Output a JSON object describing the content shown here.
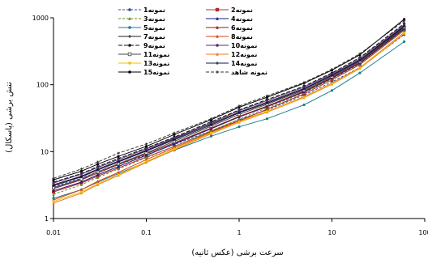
{
  "chart_data": {
    "type": "line",
    "title": "",
    "xlabel": "سرعت برشی (عکس ثانیه)",
    "ylabel": "تنش برشی (پاسکال)",
    "xscale": "log",
    "yscale": "log",
    "xlim": [
      0.01,
      100
    ],
    "ylim": [
      1,
      1000
    ],
    "xticks": [
      0.01,
      0.1,
      1,
      10,
      100
    ],
    "xtick_labels": [
      "0.01",
      "0.1",
      "1",
      "10",
      "100"
    ],
    "yticks": [
      1,
      10,
      100,
      1000
    ],
    "ytick_labels": [
      "1",
      "10",
      "100",
      "1000"
    ],
    "grid": false,
    "legend_position": "top",
    "x": [
      0.01,
      0.02,
      0.03,
      0.05,
      0.1,
      0.2,
      0.5,
      1,
      2,
      5,
      10,
      20,
      60
    ],
    "series": [
      {
        "name": "نمونه1",
        "color": "#2e4fa0",
        "marker": "circle",
        "dash": "3,2",
        "values": [
          3.0,
          4.0,
          5.0,
          6.4,
          9.0,
          12.8,
          20.5,
          30.0,
          42.0,
          70.0,
          110.0,
          180.0,
          560.0
        ]
      },
      {
        "name": "نمونه2",
        "color": "#b03030",
        "marker": "square",
        "dash": "",
        "values": [
          2.5,
          3.4,
          4.3,
          5.7,
          8.3,
          12.0,
          20.0,
          29.0,
          43.0,
          73.0,
          118.0,
          200.0,
          650.0
        ]
      },
      {
        "name": "نمونه3",
        "color": "#6b8e23",
        "marker": "triangle",
        "dash": "3,2",
        "values": [
          2.3,
          3.2,
          4.1,
          5.5,
          8.1,
          11.9,
          20.5,
          30.5,
          45.0,
          76.0,
          122.0,
          205.0,
          660.0
        ]
      },
      {
        "name": "نمونه4",
        "color": "#1a1a80",
        "marker": "triangle",
        "dash": "",
        "values": [
          2.6,
          3.5,
          4.5,
          6.0,
          8.8,
          13.0,
          22.0,
          33.0,
          47.0,
          78.0,
          125.0,
          210.0,
          680.0
        ]
      },
      {
        "name": "نمونه5",
        "color": "#1b7c8c",
        "marker": "circle",
        "dash": "",
        "values": [
          2.0,
          2.7,
          3.5,
          4.7,
          7.0,
          10.5,
          17.0,
          23.5,
          31.0,
          50.0,
          82.0,
          150.0,
          440.0
        ]
      },
      {
        "name": "نمونه6",
        "color": "#8b1a1a",
        "marker": "triangle",
        "dash": "",
        "values": [
          2.8,
          3.8,
          4.8,
          6.4,
          9.3,
          13.5,
          22.5,
          33.5,
          48.0,
          80.0,
          128.0,
          215.0,
          700.0
        ]
      },
      {
        "name": "نمونه7",
        "color": "#222222",
        "marker": "plus",
        "dash": "",
        "values": [
          3.2,
          4.3,
          5.5,
          7.2,
          10.5,
          15.5,
          26.0,
          39.0,
          55.0,
          88.0,
          140.0,
          235.0,
          760.0
        ]
      },
      {
        "name": "نمونه8",
        "color": "#e0401a",
        "marker": "triangle",
        "dash": "",
        "values": [
          1.9,
          2.7,
          3.6,
          4.9,
          7.6,
          11.4,
          19.5,
          28.5,
          40.0,
          66.0,
          105.0,
          180.0,
          600.0
        ]
      },
      {
        "name": "نمونه9",
        "color": "#111111",
        "marker": "circle",
        "dash": "5,2",
        "values": [
          3.5,
          4.7,
          6.0,
          7.9,
          11.3,
          16.5,
          28.0,
          42.0,
          60.0,
          95.0,
          150.0,
          255.0,
          820.0
        ]
      },
      {
        "name": "نمونه10",
        "color": "#5a2a7a",
        "marker": "circle",
        "dash": "",
        "values": [
          3.4,
          4.6,
          5.8,
          7.6,
          11.0,
          16.0,
          27.0,
          41.0,
          58.0,
          92.0,
          145.0,
          245.0,
          790.0
        ]
      },
      {
        "name": "نمونه11",
        "color": "#444444",
        "marker": "square-open",
        "dash": "",
        "values": [
          2.9,
          3.9,
          5.0,
          6.6,
          9.6,
          14.2,
          24.0,
          36.0,
          51.0,
          83.0,
          132.0,
          222.0,
          720.0
        ]
      },
      {
        "name": "نمونه12",
        "color": "#f07820",
        "marker": "triangle",
        "dash": "",
        "values": [
          1.7,
          2.4,
          3.2,
          4.4,
          6.9,
          10.6,
          18.5,
          27.5,
          39.0,
          64.0,
          102.0,
          175.0,
          580.0
        ]
      },
      {
        "name": "نمونه13",
        "color": "#f0c000",
        "marker": "circle",
        "dash": "",
        "values": [
          1.8,
          2.5,
          3.3,
          4.5,
          7.1,
          11.0,
          19.0,
          28.0,
          40.0,
          65.0,
          104.0,
          178.0,
          590.0
        ]
      },
      {
        "name": "نمونه14",
        "color": "#141450",
        "marker": "plus",
        "dash": "",
        "values": [
          3.1,
          4.2,
          5.3,
          7.0,
          10.2,
          15.0,
          25.0,
          38.0,
          53.0,
          86.0,
          137.0,
          230.0,
          740.0
        ]
      },
      {
        "name": "نمونه15",
        "color": "#000000",
        "marker": "circle",
        "dash": "",
        "values": [
          3.8,
          5.1,
          6.5,
          8.5,
          12.0,
          18.0,
          30.0,
          46.0,
          65.0,
          105.0,
          165.0,
          280.0,
          950.0
        ]
      },
      {
        "name": "نمونه شاهد",
        "color": "#333333",
        "marker": "plus",
        "dash": "4,2",
        "values": [
          4.0,
          5.5,
          7.0,
          9.5,
          13.0,
          19.0,
          31.0,
          48.0,
          68.0,
          108.0,
          170.0,
          290.0,
          900.0
        ]
      }
    ]
  }
}
